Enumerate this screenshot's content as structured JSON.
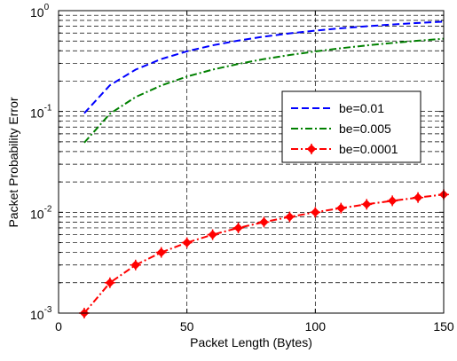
{
  "chart_data": {
    "type": "line",
    "xlabel": "Packet Length (Bytes)",
    "ylabel": "Packet Probability Error",
    "xlim": [
      0,
      150
    ],
    "ylim": [
      0.001,
      1
    ],
    "yscale": "log",
    "grid": true,
    "legend_position": "right",
    "x_ticks": [
      "0",
      "50",
      "100",
      "150"
    ],
    "y_ticks": [
      {
        "base": "10",
        "exp": "-3"
      },
      {
        "base": "10",
        "exp": "-2"
      },
      {
        "base": "10",
        "exp": "-1"
      },
      {
        "base": "10",
        "exp": "0"
      }
    ],
    "series": [
      {
        "name": "be=0.01",
        "color": "#0000ff",
        "style": "dashed",
        "x": [
          10,
          20,
          30,
          40,
          50,
          60,
          70,
          80,
          90,
          100,
          110,
          120,
          130,
          140,
          150
        ],
        "y": [
          0.096,
          0.182,
          0.26,
          0.331,
          0.395,
          0.453,
          0.505,
          0.553,
          0.595,
          0.634,
          0.669,
          0.7,
          0.729,
          0.755,
          0.778
        ]
      },
      {
        "name": "be=0.005",
        "color": "#008000",
        "style": "dashdot",
        "x": [
          10,
          20,
          30,
          40,
          50,
          60,
          70,
          80,
          90,
          100,
          110,
          120,
          130,
          140,
          150
        ],
        "y": [
          0.049,
          0.095,
          0.139,
          0.181,
          0.222,
          0.26,
          0.296,
          0.331,
          0.363,
          0.394,
          0.424,
          0.452,
          0.478,
          0.503,
          0.527
        ]
      },
      {
        "name": "be=0.0001",
        "color": "#ff0000",
        "style": "dashdot-marker",
        "x": [
          10,
          20,
          30,
          40,
          50,
          60,
          70,
          80,
          90,
          100,
          110,
          120,
          130,
          140,
          150
        ],
        "y": [
          0.001,
          0.002,
          0.003,
          0.004,
          0.005,
          0.006,
          0.007,
          0.008,
          0.009,
          0.01,
          0.011,
          0.012,
          0.013,
          0.014,
          0.015
        ]
      }
    ]
  }
}
